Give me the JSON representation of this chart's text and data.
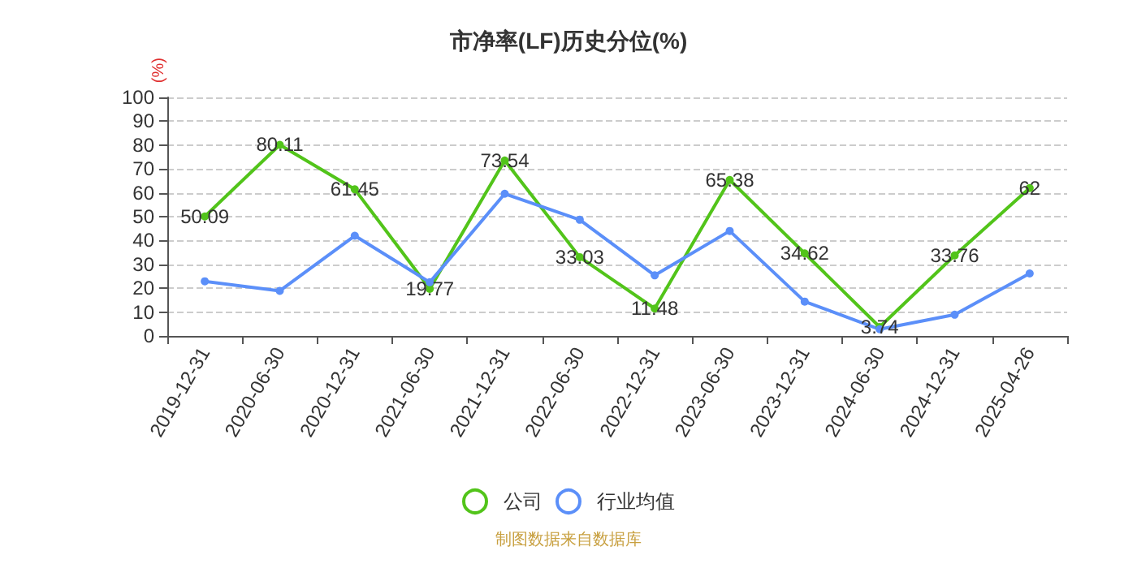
{
  "chart_data": {
    "type": "line",
    "title": "市净率(LF)历史分位(%)",
    "ylabel": "(%)",
    "categories": [
      "2019-12-31",
      "2020-06-30",
      "2020-12-31",
      "2021-06-30",
      "2021-12-31",
      "2022-06-30",
      "2022-12-31",
      "2023-06-30",
      "2023-12-31",
      "2024-06-30",
      "2024-12-31",
      "2025-04-26"
    ],
    "series": [
      {
        "name": "公司",
        "color": "#52c41a",
        "values": [
          50.09,
          80.11,
          61.45,
          19.77,
          73.54,
          33.03,
          11.48,
          65.38,
          34.62,
          3.74,
          33.76,
          62
        ],
        "data_labels": true
      },
      {
        "name": "行业均值",
        "color": "#5b8ff9",
        "values": [
          22.9,
          18.9,
          42,
          22.5,
          59.6,
          48.7,
          25.4,
          44,
          14.4,
          2.8,
          8.9,
          26.2
        ]
      }
    ],
    "ylim": [
      0,
      100
    ],
    "yticks": [
      0,
      10,
      20,
      30,
      40,
      50,
      60,
      70,
      80,
      90,
      100
    ],
    "grid": "y",
    "legend": "bottom",
    "marker": "circle",
    "line_style": "solid",
    "annotations": [
      "制图数据来自数据库"
    ]
  }
}
